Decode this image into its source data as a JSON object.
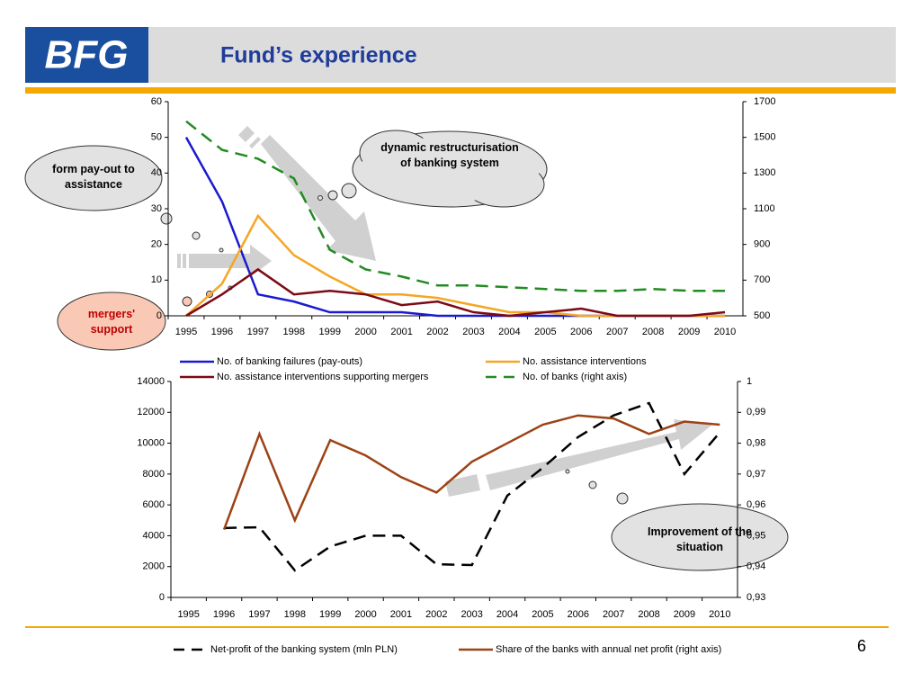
{
  "header": {
    "logo": "BFG",
    "title": "Fund’s experience"
  },
  "page_number": "6",
  "chart_data": [
    {
      "type": "line",
      "categories": [
        "1995",
        "1996",
        "1997",
        "1998",
        "1999",
        "2000",
        "2001",
        "2002",
        "2003",
        "2004",
        "2005",
        "2006",
        "2007",
        "2008",
        "2009",
        "2010"
      ],
      "ylim": [
        0,
        60
      ],
      "yticks": [
        0,
        10,
        20,
        30,
        40,
        50,
        60
      ],
      "y2lim": [
        500,
        1700
      ],
      "y2ticks": [
        500,
        700,
        900,
        1100,
        1300,
        1500,
        1700
      ],
      "series": [
        {
          "name": "No. of banking failures (pay-outs)",
          "color": "#1a1ad0",
          "values": [
            50,
            32,
            6,
            4,
            1,
            1,
            1,
            0,
            0,
            0,
            0,
            0,
            0,
            0,
            0,
            0
          ]
        },
        {
          "name": "No. assistance interventions",
          "color": "#f5a623",
          "values": [
            0,
            9,
            28,
            17,
            11,
            6,
            6,
            5,
            3,
            1,
            1,
            0,
            0,
            0,
            0,
            0
          ]
        },
        {
          "name": "No. assistance interventions supporting mergers",
          "color": "#7b0a14",
          "values": [
            0,
            6,
            13,
            6,
            7,
            6,
            3,
            4,
            1,
            0,
            1,
            2,
            0,
            0,
            0,
            1
          ]
        },
        {
          "name": "No. of banks (right axis)",
          "color": "#228b22",
          "dash": true,
          "axis": "y2",
          "values": [
            1590,
            1430,
            1380,
            1270,
            870,
            760,
            720,
            670,
            670,
            660,
            650,
            640,
            640,
            650,
            640,
            640
          ]
        }
      ],
      "annotations": [
        "dynamic restructurisation of banking system",
        "form pay-out to assistance",
        "mergers' support"
      ]
    },
    {
      "type": "line",
      "categories": [
        "1995",
        "1996",
        "1997",
        "1998",
        "1999",
        "2000",
        "2001",
        "2002",
        "2003",
        "2004",
        "2005",
        "2006",
        "2007",
        "2008",
        "2009",
        "2010"
      ],
      "ylim": [
        0,
        14000
      ],
      "yticks": [
        0,
        2000,
        4000,
        6000,
        8000,
        10000,
        12000,
        14000
      ],
      "y2lim": [
        0.93,
        1
      ],
      "y2ticks": [
        {
          "value": 0.93,
          "label": "0,93"
        },
        {
          "value": 0.94,
          "label": "0,94"
        },
        {
          "value": 0.95,
          "label": "0,95"
        },
        {
          "value": 0.96,
          "label": "0,96"
        },
        {
          "value": 0.97,
          "label": "0,97"
        },
        {
          "value": 0.98,
          "label": "0,98"
        },
        {
          "value": 0.99,
          "label": "0,99"
        },
        1
      ],
      "series": [
        {
          "name": "Net-profit of the banking system (mln PLN)",
          "color": "#000000",
          "dash": true,
          "values": [
            null,
            4500,
            4550,
            1750,
            3300,
            4000,
            4000,
            2150,
            2100,
            6600,
            8400,
            10400,
            11800,
            12600,
            8000,
            10700
          ]
        },
        {
          "name": "Share of the banks with annual net profit (right axis)",
          "color": "#9c4315",
          "axis": "y2",
          "values": [
            null,
            0.952,
            0.983,
            0.955,
            0.981,
            0.976,
            0.969,
            0.964,
            0.974,
            0.98,
            0.986,
            0.989,
            0.988,
            0.983,
            0.987,
            0.986
          ]
        }
      ],
      "annotations": [
        "Improvement of the situation"
      ]
    }
  ]
}
